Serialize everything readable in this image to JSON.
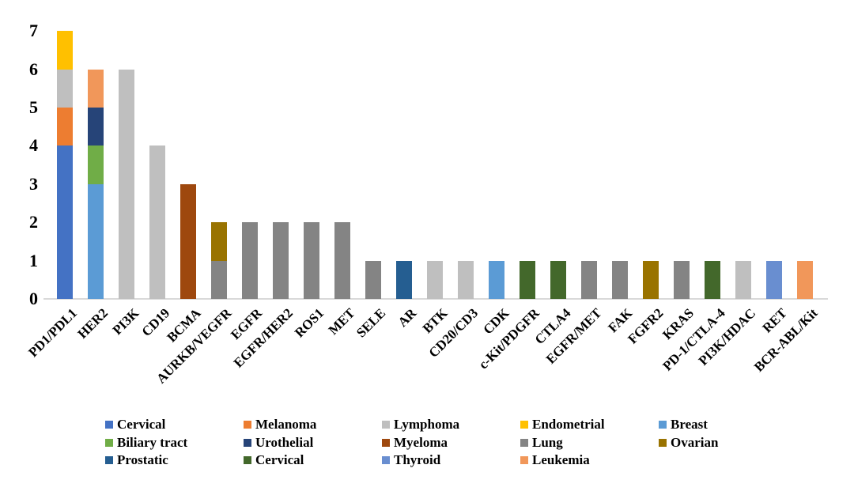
{
  "chart_data": {
    "type": "bar",
    "subtype": "stacked-vertical",
    "title": "",
    "xlabel": "",
    "ylabel": "",
    "ylim": [
      0,
      7
    ],
    "yticks": [
      0,
      1,
      2,
      3,
      4,
      5,
      6,
      7
    ],
    "grid": false,
    "legend_position": "bottom",
    "axis_line_color": "#d9d9d9",
    "series_legend": [
      {
        "label": "Cervical",
        "color": "#4472C4"
      },
      {
        "label": "Melanoma",
        "color": "#ED7D31"
      },
      {
        "label": "Lymphoma",
        "color": "#BFBFBF"
      },
      {
        "label": "Endometrial",
        "color": "#FFC000"
      },
      {
        "label": "Breast",
        "color": "#5B9BD5"
      },
      {
        "label": "Biliary tract",
        "color": "#70AD47"
      },
      {
        "label": "Urothelial",
        "color": "#264478"
      },
      {
        "label": "Myeloma",
        "color": "#9E480E"
      },
      {
        "label": "Lung",
        "color": "#848484"
      },
      {
        "label": "Ovarian",
        "color": "#997300"
      },
      {
        "label": "Prostatic",
        "color": "#255E91"
      },
      {
        "label": "Cervical",
        "color": "#43682B"
      },
      {
        "label": "Thyroid",
        "color": "#698ED0"
      },
      {
        "label": "Leukemia",
        "color": "#F1975A"
      }
    ],
    "categories": [
      "PD1/PDL1",
      "HER2",
      "PI3K",
      "CD19",
      "BCMA",
      "AURKB/VEGFR",
      "EGFR",
      "EGFR/HER2",
      "ROS1",
      "MET",
      "SELE",
      "AR",
      "BTK",
      "CD20/CD3",
      "CDK",
      "c-Kit/PDGFR",
      "CTLA4",
      "EGFR/MET",
      "FAK",
      "FGFR2",
      "KRAS",
      "PD-1/CTLA-4",
      "PI3K/HDAC",
      "RET",
      "BCR-ABL/Kit"
    ],
    "bars": [
      {
        "category": "PD1/PDL1",
        "total": 7,
        "segments": [
          {
            "series": 0,
            "label": "Cervical",
            "value": 4
          },
          {
            "series": 1,
            "label": "Melanoma",
            "value": 1
          },
          {
            "series": 2,
            "label": "Lymphoma",
            "value": 1
          },
          {
            "series": 3,
            "label": "Endometrial",
            "value": 1
          }
        ]
      },
      {
        "category": "HER2",
        "total": 6,
        "segments": [
          {
            "series": 4,
            "label": "Breast",
            "value": 3
          },
          {
            "series": 5,
            "label": "Biliary tract",
            "value": 1
          },
          {
            "series": 6,
            "label": "Urothelial",
            "value": 1
          },
          {
            "series": 13,
            "label": "Leukemia",
            "value": 1
          }
        ]
      },
      {
        "category": "PI3K",
        "total": 6,
        "segments": [
          {
            "series": 2,
            "label": "Lymphoma",
            "value": 6
          }
        ]
      },
      {
        "category": "CD19",
        "total": 4,
        "segments": [
          {
            "series": 2,
            "label": "Lymphoma",
            "value": 4
          }
        ]
      },
      {
        "category": "BCMA",
        "total": 3,
        "segments": [
          {
            "series": 7,
            "label": "Myeloma",
            "value": 3
          }
        ]
      },
      {
        "category": "AURKB/VEGFR",
        "total": 2,
        "segments": [
          {
            "series": 8,
            "label": "Lung",
            "value": 1
          },
          {
            "series": 9,
            "label": "Ovarian",
            "value": 1
          }
        ]
      },
      {
        "category": "EGFR",
        "total": 2,
        "segments": [
          {
            "series": 8,
            "label": "Lung",
            "value": 2
          }
        ]
      },
      {
        "category": "EGFR/HER2",
        "total": 2,
        "segments": [
          {
            "series": 8,
            "label": "Lung",
            "value": 2
          }
        ]
      },
      {
        "category": "ROS1",
        "total": 2,
        "segments": [
          {
            "series": 8,
            "label": "Lung",
            "value": 2
          }
        ]
      },
      {
        "category": "MET",
        "total": 2,
        "segments": [
          {
            "series": 8,
            "label": "Lung",
            "value": 2
          }
        ]
      },
      {
        "category": "SELE",
        "total": 1,
        "segments": [
          {
            "series": 8,
            "label": "Lung",
            "value": 1
          }
        ]
      },
      {
        "category": "AR",
        "total": 1,
        "segments": [
          {
            "series": 10,
            "label": "Prostatic",
            "value": 1
          }
        ]
      },
      {
        "category": "BTK",
        "total": 1,
        "segments": [
          {
            "series": 2,
            "label": "Lymphoma",
            "value": 1
          }
        ]
      },
      {
        "category": "CD20/CD3",
        "total": 1,
        "segments": [
          {
            "series": 2,
            "label": "Lymphoma",
            "value": 1
          }
        ]
      },
      {
        "category": "CDK",
        "total": 1,
        "segments": [
          {
            "series": 4,
            "label": "Breast",
            "value": 1
          }
        ]
      },
      {
        "category": "c-Kit/PDGFR",
        "total": 1,
        "segments": [
          {
            "series": 11,
            "label": "Cervical",
            "value": 1
          }
        ]
      },
      {
        "category": "CTLA4",
        "total": 1,
        "segments": [
          {
            "series": 11,
            "label": "Cervical",
            "value": 1
          }
        ]
      },
      {
        "category": "EGFR/MET",
        "total": 1,
        "segments": [
          {
            "series": 8,
            "label": "Lung",
            "value": 1
          }
        ]
      },
      {
        "category": "FAK",
        "total": 1,
        "segments": [
          {
            "series": 8,
            "label": "Lung",
            "value": 1
          }
        ]
      },
      {
        "category": "FGFR2",
        "total": 1,
        "segments": [
          {
            "series": 9,
            "label": "Ovarian",
            "value": 1
          }
        ]
      },
      {
        "category": "KRAS",
        "total": 1,
        "segments": [
          {
            "series": 8,
            "label": "Lung",
            "value": 1
          }
        ]
      },
      {
        "category": "PD-1/CTLA-4",
        "total": 1,
        "segments": [
          {
            "series": 11,
            "label": "Cervical",
            "value": 1
          }
        ]
      },
      {
        "category": "PI3K/HDAC",
        "total": 1,
        "segments": [
          {
            "series": 2,
            "label": "Lymphoma",
            "value": 1
          }
        ]
      },
      {
        "category": "RET",
        "total": 1,
        "segments": [
          {
            "series": 12,
            "label": "Thyroid",
            "value": 1
          }
        ]
      },
      {
        "category": "BCR-ABL/Kit",
        "total": 1,
        "segments": [
          {
            "series": 13,
            "label": "Leukemia",
            "value": 1
          }
        ]
      }
    ]
  }
}
